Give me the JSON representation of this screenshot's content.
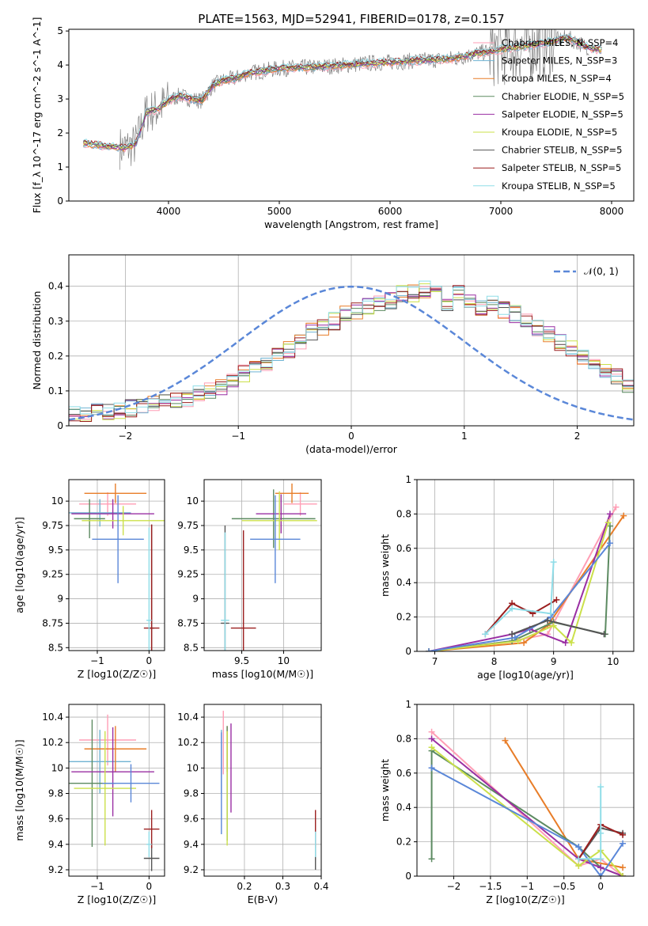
{
  "figure": {
    "title": "PLATE=1563, MJD=52941, FIBERID=0178, z=0.157"
  },
  "colors": {
    "spectrum": "#808080",
    "chabrier_miles": "#ff9eb5",
    "salpeter_miles": "#6fb3d2",
    "kroupa_miles": "#e87d28",
    "chabrier_elodie": "#5c8a61",
    "salpeter_elodie": "#9a2fa3",
    "kroupa_elodie": "#cbe04a",
    "chabrier_stelib": "#555555",
    "salpeter_stelib": "#9b1f1f",
    "kroupa_stelib": "#8fdde8",
    "normal": "#5a87d8",
    "grid": "#b0b0b0"
  },
  "chart_data": [
    {
      "id": "spectrum",
      "type": "line",
      "title": "PLATE=1563, MJD=52941, FIBERID=0178, z=0.157",
      "xlabel": "wavelength [Angstrom, rest frame]",
      "ylabel": "Flux [f_λ 10^-17 erg cm^-2 s^-1 A^-1]",
      "xlim": [
        3100,
        8200
      ],
      "ylim": [
        0,
        5.05
      ],
      "xticks": [
        4000,
        5000,
        6000,
        7000,
        8000
      ],
      "yticks": [
        0,
        1,
        2,
        3,
        4,
        5
      ],
      "grid": false,
      "legend_position": "top-right",
      "legend": [
        {
          "label": "Chabrier MILES, N_SSP=4",
          "color": "#ff9eb5"
        },
        {
          "label": "Salpeter MILES, N_SSP=3",
          "color": "#6fb3d2"
        },
        {
          "label": "Kroupa MILES, N_SSP=4",
          "color": "#e87d28"
        },
        {
          "label": "Chabrier ELODIE, N_SSP=5",
          "color": "#5c8a61"
        },
        {
          "label": "Salpeter ELODIE, N_SSP=5",
          "color": "#9a2fa3"
        },
        {
          "label": "Kroupa ELODIE, N_SSP=5",
          "color": "#cbe04a"
        },
        {
          "label": "Chabrier STELIB, N_SSP=5",
          "color": "#555555"
        },
        {
          "label": "Salpeter STELIB, N_SSP=5",
          "color": "#9b1f1f"
        },
        {
          "label": "Kroupa STELIB, N_SSP=5",
          "color": "#8fdde8"
        }
      ],
      "continuum": [
        [
          3230,
          1.7
        ],
        [
          3400,
          1.62
        ],
        [
          3500,
          1.6
        ],
        [
          3600,
          1.55
        ],
        [
          3700,
          1.65
        ],
        [
          3800,
          2.6
        ],
        [
          3900,
          2.7
        ],
        [
          4000,
          2.95
        ],
        [
          4100,
          3.1
        ],
        [
          4200,
          3.0
        ],
        [
          4300,
          2.95
        ],
        [
          4400,
          3.4
        ],
        [
          4500,
          3.55
        ],
        [
          4600,
          3.6
        ],
        [
          4700,
          3.75
        ],
        [
          4800,
          3.8
        ],
        [
          4900,
          3.85
        ],
        [
          5000,
          3.9
        ],
        [
          5200,
          3.92
        ],
        [
          5400,
          3.95
        ],
        [
          5600,
          4.0
        ],
        [
          5800,
          4.05
        ],
        [
          6000,
          4.08
        ],
        [
          6200,
          4.12
        ],
        [
          6400,
          4.15
        ],
        [
          6600,
          4.2
        ],
        [
          6800,
          4.35
        ],
        [
          7000,
          4.45
        ],
        [
          7200,
          4.55
        ],
        [
          7400,
          4.65
        ],
        [
          7600,
          4.8
        ],
        [
          7800,
          4.5
        ],
        [
          7900,
          4.45
        ]
      ]
    },
    {
      "id": "residuals",
      "type": "histogram",
      "xlabel": "(data-model)/error",
      "ylabel": "Normed distribution",
      "xlim": [
        -2.5,
        2.5
      ],
      "ylim": [
        0,
        0.49
      ],
      "xticks": [
        -2,
        -1,
        0,
        1,
        2
      ],
      "yticks": [
        0.0,
        0.1,
        0.2,
        0.3,
        0.4
      ],
      "grid": true,
      "legend_position": "top-right",
      "legend": [
        {
          "label": "𝒩(0, 1)",
          "style": "dashed",
          "color": "#5a87d8"
        }
      ],
      "bin_width": 0.1,
      "bin_start": -2.5,
      "histogram": [
        0.03,
        0.035,
        0.04,
        0.04,
        0.045,
        0.05,
        0.06,
        0.065,
        0.07,
        0.07,
        0.075,
        0.09,
        0.1,
        0.11,
        0.13,
        0.15,
        0.17,
        0.18,
        0.2,
        0.22,
        0.24,
        0.27,
        0.28,
        0.3,
        0.32,
        0.33,
        0.34,
        0.35,
        0.36,
        0.38,
        0.38,
        0.39,
        0.38,
        0.35,
        0.38,
        0.36,
        0.34,
        0.35,
        0.33,
        0.32,
        0.3,
        0.28,
        0.26,
        0.24,
        0.22,
        0.2,
        0.18,
        0.16,
        0.14,
        0.12,
        0.1
      ]
    },
    {
      "id": "age_vs_Z",
      "type": "errorbar",
      "xlabel": "Z [log10(Z/Z☉)]",
      "ylabel": "age [log10(age/yr)]",
      "xlim": [
        -1.55,
        0.3
      ],
      "ylim": [
        8.47,
        10.22
      ],
      "xticks": [
        -1,
        0
      ],
      "yticks": [
        8.5,
        8.75,
        9.0,
        9.25,
        9.5,
        9.75,
        10.0
      ],
      "grid": true,
      "points": [
        {
          "color": "#ff9eb5",
          "x": -0.8,
          "xerr": 0.55,
          "y": 9.97,
          "yerr": 0.12
        },
        {
          "color": "#6fb3d2",
          "x": -0.95,
          "xerr": 0.6,
          "y": 9.88,
          "yerr": 0.14
        },
        {
          "color": "#e87d28",
          "x": -0.65,
          "xerr": 0.6,
          "y": 10.08,
          "yerr": 0.1
        },
        {
          "color": "#5c8a61",
          "x": -1.15,
          "xerr": 0.3,
          "y": 9.82,
          "yerr": 0.2
        },
        {
          "color": "#9a2fa3",
          "x": -0.7,
          "xerr": 0.8,
          "y": 9.87,
          "yerr": 0.15
        },
        {
          "color": "#cbe04a",
          "x": -0.5,
          "xerr": 0.8,
          "y": 9.8,
          "yerr": 0.15
        },
        {
          "color": "#5a87d8",
          "x": -0.6,
          "xerr": 0.5,
          "y": 9.61,
          "yerr": 0.45
        },
        {
          "color": "#555555",
          "x": 0.05,
          "xerr": 0.05,
          "y": 8.7,
          "yerr": 1.06
        },
        {
          "color": "#9b1f1f",
          "x": 0.05,
          "xerr": 0.15,
          "y": 8.7,
          "yerr": 1.06
        },
        {
          "color": "#8fdde8",
          "x": 0.0,
          "xerr": 0.05,
          "y": 8.78,
          "yerr": 0.95
        }
      ]
    },
    {
      "id": "age_vs_mass",
      "type": "errorbar",
      "xlabel": "mass [log10(M/M☉)]",
      "ylabel": "",
      "xlim": [
        9.05,
        10.45
      ],
      "ylim": [
        8.47,
        10.22
      ],
      "xticks": [
        9.5,
        10.0
      ],
      "yticks": [
        8.5,
        8.75,
        9.0,
        9.25,
        9.5,
        9.75,
        10.0
      ],
      "grid": true,
      "points": [
        {
          "color": "#ff9eb5",
          "x": 10.2,
          "xerr": 0.2,
          "y": 9.97,
          "yerr": 0.12
        },
        {
          "color": "#e87d28",
          "x": 10.1,
          "xerr": 0.2,
          "y": 10.08,
          "yerr": 0.1
        },
        {
          "color": "#5c8a61",
          "x": 9.88,
          "xerr": 0.5,
          "y": 9.82,
          "yerr": 0.3
        },
        {
          "color": "#9a2fa3",
          "x": 9.97,
          "xerr": 0.3,
          "y": 9.87,
          "yerr": 0.2
        },
        {
          "color": "#cbe04a",
          "x": 9.95,
          "xerr": 0.45,
          "y": 9.8,
          "yerr": 0.3
        },
        {
          "color": "#5a87d8",
          "x": 9.9,
          "xerr": 0.3,
          "y": 9.61,
          "yerr": 0.45
        },
        {
          "color": "#555555",
          "x": 9.3,
          "xerr": 0.05,
          "y": 8.75,
          "yerr": 1.0
        },
        {
          "color": "#9b1f1f",
          "x": 9.52,
          "xerr": 0.15,
          "y": 8.7,
          "yerr": 1.0
        },
        {
          "color": "#8fdde8",
          "x": 9.3,
          "xerr": 0.05,
          "y": 8.78,
          "yerr": 0.9
        }
      ]
    },
    {
      "id": "weight_vs_age",
      "type": "line",
      "xlabel": "age [log10(age/yr)]",
      "ylabel": "mass weight",
      "xlim": [
        6.7,
        10.35
      ],
      "ylim": [
        0,
        1.0
      ],
      "xticks": [
        7,
        8,
        9,
        10
      ],
      "yticks": [
        0.0,
        0.2,
        0.4,
        0.6,
        0.8,
        1.0
      ],
      "grid": true,
      "series": [
        {
          "color": "#ff9eb5",
          "x": [
            6.9,
            8.3,
            8.9,
            10.05
          ],
          "y": [
            0.0,
            0.06,
            0.1,
            0.84
          ]
        },
        {
          "color": "#e87d28",
          "x": [
            6.9,
            8.5,
            8.9,
            10.18
          ],
          "y": [
            0.0,
            0.05,
            0.15,
            0.79
          ]
        },
        {
          "color": "#5c8a61",
          "x": [
            6.9,
            8.3,
            9.0,
            9.87,
            9.95
          ],
          "y": [
            0.0,
            0.06,
            0.17,
            0.1,
            0.73
          ]
        },
        {
          "color": "#9a2fa3",
          "x": [
            6.9,
            8.3,
            8.6,
            9.2,
            9.95
          ],
          "y": [
            0.0,
            0.1,
            0.13,
            0.05,
            0.8
          ]
        },
        {
          "color": "#cbe04a",
          "x": [
            6.9,
            8.4,
            9.0,
            9.3,
            9.92
          ],
          "y": [
            0.0,
            0.06,
            0.15,
            0.05,
            0.75
          ]
        },
        {
          "color": "#5a87d8",
          "x": [
            6.9,
            8.35,
            8.95,
            9.95
          ],
          "y": [
            0.0,
            0.08,
            0.2,
            0.63
          ]
        },
        {
          "color": "#555555",
          "x": [
            8.3,
            8.9,
            9.85
          ],
          "y": [
            0.1,
            0.18,
            0.1
          ]
        },
        {
          "color": "#9b1f1f",
          "x": [
            7.85,
            8.3,
            8.65,
            9.05
          ],
          "y": [
            0.1,
            0.28,
            0.22,
            0.3
          ]
        },
        {
          "color": "#8fdde8",
          "x": [
            7.85,
            8.3,
            8.95,
            9.0
          ],
          "y": [
            0.1,
            0.25,
            0.22,
            0.52
          ]
        }
      ]
    },
    {
      "id": "mass_vs_Z",
      "type": "errorbar",
      "xlabel": "Z [log10(Z/Z☉)]",
      "ylabel": "mass [log10(M/M☉)]",
      "xlim": [
        -1.55,
        0.3
      ],
      "ylim": [
        9.15,
        10.5
      ],
      "xticks": [
        -1,
        0
      ],
      "yticks": [
        9.2,
        9.4,
        9.6,
        9.8,
        10.0,
        10.2,
        10.4
      ],
      "grid": true,
      "points": [
        {
          "color": "#ff9eb5",
          "x": -0.8,
          "xerr": 0.55,
          "y": 10.22,
          "yerr": 0.2
        },
        {
          "color": "#6fb3d2",
          "x": -0.95,
          "xerr": 0.6,
          "y": 10.05,
          "yerr": 0.25
        },
        {
          "color": "#e87d28",
          "x": -0.65,
          "xerr": 0.6,
          "y": 10.15,
          "yerr": 0.18
        },
        {
          "color": "#5c8a61",
          "x": -1.1,
          "xerr": 0.45,
          "y": 9.88,
          "yerr": 0.5
        },
        {
          "color": "#9a2fa3",
          "x": -0.7,
          "xerr": 0.8,
          "y": 9.97,
          "yerr": 0.35
        },
        {
          "color": "#cbe04a",
          "x": -0.85,
          "xerr": 0.6,
          "y": 9.84,
          "yerr": 0.45
        },
        {
          "color": "#5a87d8",
          "x": -0.35,
          "xerr": 0.55,
          "y": 9.88,
          "yerr": 0.15
        },
        {
          "color": "#555555",
          "x": 0.05,
          "xerr": 0.15,
          "y": 9.29,
          "yerr": 0.1
        },
        {
          "color": "#9b1f1f",
          "x": 0.05,
          "xerr": 0.15,
          "y": 9.52,
          "yerr": 0.15
        },
        {
          "color": "#8fdde8",
          "x": 0.0,
          "xerr": 0.05,
          "y": 9.4,
          "yerr": 0.1
        }
      ]
    },
    {
      "id": "mass_vs_ebv",
      "type": "errorbar",
      "xlabel": "E(B-V)",
      "ylabel": "",
      "xlim": [
        0.095,
        0.4
      ],
      "ylim": [
        9.15,
        10.5
      ],
      "xticks": [
        0.2,
        0.3,
        0.4
      ],
      "yticks": [
        9.2,
        9.4,
        9.6,
        9.8,
        10.0,
        10.2,
        10.4
      ],
      "grid": true,
      "points": [
        {
          "color": "#ff9eb5",
          "x": 0.145,
          "y": 10.2,
          "yerr": 0.25
        },
        {
          "color": "#6fb3d2",
          "x": 0.14,
          "y": 10.05,
          "yerr": 0.25
        },
        {
          "color": "#e87d28",
          "x": 0.155,
          "y": 10.15,
          "yerr": 0.18
        },
        {
          "color": "#5c8a61",
          "x": 0.155,
          "y": 9.88,
          "yerr": 0.45
        },
        {
          "color": "#9a2fa3",
          "x": 0.165,
          "y": 10.0,
          "yerr": 0.35
        },
        {
          "color": "#cbe04a",
          "x": 0.155,
          "y": 9.84,
          "yerr": 0.45
        },
        {
          "color": "#5a87d8",
          "x": 0.14,
          "y": 9.88,
          "yerr": 0.4
        },
        {
          "color": "#555555",
          "x": 0.385,
          "y": 9.3,
          "yerr": 0.1
        },
        {
          "color": "#9b1f1f",
          "x": 0.385,
          "y": 9.52,
          "yerr": 0.15
        },
        {
          "color": "#8fdde8",
          "x": 0.385,
          "y": 9.4,
          "yerr": 0.1
        }
      ]
    },
    {
      "id": "weight_vs_Z",
      "type": "line",
      "xlabel": "Z [log10(Z/Z☉)]",
      "ylabel": "mass weight",
      "xlim": [
        -2.5,
        0.45
      ],
      "ylim": [
        0,
        1.0
      ],
      "xticks": [
        -2.0,
        -1.5,
        -1.0,
        -0.5,
        0.0
      ],
      "yticks": [
        0.0,
        0.2,
        0.4,
        0.6,
        0.8,
        1.0
      ],
      "grid": true,
      "series": [
        {
          "color": "#ff9eb5",
          "x": [
            -2.3,
            -0.3,
            0.0,
            0.3
          ],
          "y": [
            0.84,
            0.06,
            0.1,
            0.0
          ]
        },
        {
          "color": "#e87d28",
          "x": [
            -1.3,
            -0.3,
            0.3
          ],
          "y": [
            0.79,
            0.1,
            0.05
          ]
        },
        {
          "color": "#5c8a61",
          "x": [
            -2.3,
            -2.3,
            -0.3,
            0.0,
            0.3
          ],
          "y": [
            0.1,
            0.73,
            0.17,
            0.05,
            0.0
          ]
        },
        {
          "color": "#9a2fa3",
          "x": [
            -2.3,
            -0.3,
            0.0,
            0.3
          ],
          "y": [
            0.8,
            0.1,
            0.05,
            0.0
          ]
        },
        {
          "color": "#cbe04a",
          "x": [
            -2.3,
            -0.3,
            0.0,
            0.3
          ],
          "y": [
            0.75,
            0.06,
            0.15,
            0.0
          ]
        },
        {
          "color": "#5a87d8",
          "x": [
            -2.3,
            -0.3,
            0.0,
            0.3
          ],
          "y": [
            0.63,
            0.17,
            0.0,
            0.19
          ]
        },
        {
          "color": "#555555",
          "x": [
            -0.3,
            0.0,
            0.3
          ],
          "y": [
            0.1,
            0.28,
            0.25
          ]
        },
        {
          "color": "#9b1f1f",
          "x": [
            -0.3,
            0.0,
            0.3
          ],
          "y": [
            0.1,
            0.3,
            0.24
          ]
        },
        {
          "color": "#8fdde8",
          "x": [
            -0.3,
            0.0,
            0.0,
            0.0
          ],
          "y": [
            0.1,
            0.1,
            0.25,
            0.52
          ]
        }
      ]
    }
  ]
}
